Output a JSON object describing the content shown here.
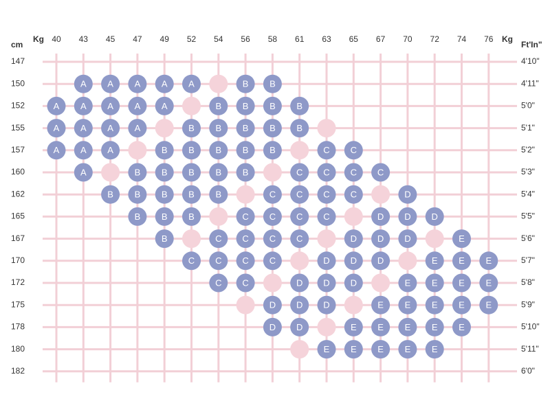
{
  "header": {
    "row_label": "cm",
    "column_label_left": "Kg",
    "column_label_right": "Kg",
    "row_label_right": "Ft'In\""
  },
  "columns": [
    40,
    43,
    45,
    47,
    49,
    52,
    54,
    56,
    58,
    61,
    63,
    65,
    67,
    70,
    72,
    74,
    76
  ],
  "rows": [
    {
      "cm": 147,
      "ft": "4'10\"",
      "cells": []
    },
    {
      "cm": 150,
      "ft": "4'11\"",
      "cells": [
        {
          "col": 1,
          "size": "A"
        },
        {
          "col": 2,
          "size": "A"
        },
        {
          "col": 3,
          "size": "A"
        },
        {
          "col": 4,
          "size": "A"
        },
        {
          "col": 5,
          "size": "A"
        },
        {
          "col": 6
        },
        {
          "col": 7,
          "size": "B"
        },
        {
          "col": 8,
          "size": "B"
        }
      ]
    },
    {
      "cm": 152,
      "ft": "5'0\"",
      "cells": [
        {
          "col": 0,
          "size": "A"
        },
        {
          "col": 1,
          "size": "A"
        },
        {
          "col": 2,
          "size": "A"
        },
        {
          "col": 3,
          "size": "A"
        },
        {
          "col": 4,
          "size": "A"
        },
        {
          "col": 5
        },
        {
          "col": 6,
          "size": "B"
        },
        {
          "col": 7,
          "size": "B"
        },
        {
          "col": 8,
          "size": "B"
        },
        {
          "col": 9,
          "size": "B"
        }
      ]
    },
    {
      "cm": 155,
      "ft": "5'1\"",
      "cells": [
        {
          "col": 0,
          "size": "A"
        },
        {
          "col": 1,
          "size": "A"
        },
        {
          "col": 2,
          "size": "A"
        },
        {
          "col": 3,
          "size": "A"
        },
        {
          "col": 4
        },
        {
          "col": 5,
          "size": "B"
        },
        {
          "col": 6,
          "size": "B"
        },
        {
          "col": 7,
          "size": "B"
        },
        {
          "col": 8,
          "size": "B"
        },
        {
          "col": 9,
          "size": "B"
        },
        {
          "col": 10
        }
      ]
    },
    {
      "cm": 157,
      "ft": "5'2\"",
      "cells": [
        {
          "col": 0,
          "size": "A"
        },
        {
          "col": 1,
          "size": "A"
        },
        {
          "col": 2,
          "size": "A"
        },
        {
          "col": 3
        },
        {
          "col": 4,
          "size": "B"
        },
        {
          "col": 5,
          "size": "B"
        },
        {
          "col": 6,
          "size": "B"
        },
        {
          "col": 7,
          "size": "B"
        },
        {
          "col": 8,
          "size": "B"
        },
        {
          "col": 9
        },
        {
          "col": 10,
          "size": "C"
        },
        {
          "col": 11,
          "size": "C"
        }
      ]
    },
    {
      "cm": 160,
      "ft": "5'3\"",
      "cells": [
        {
          "col": 1,
          "size": "A"
        },
        {
          "col": 2
        },
        {
          "col": 3,
          "size": "B"
        },
        {
          "col": 4,
          "size": "B"
        },
        {
          "col": 5,
          "size": "B"
        },
        {
          "col": 6,
          "size": "B"
        },
        {
          "col": 7,
          "size": "B"
        },
        {
          "col": 8
        },
        {
          "col": 9,
          "size": "C"
        },
        {
          "col": 10,
          "size": "C"
        },
        {
          "col": 11,
          "size": "C"
        },
        {
          "col": 12,
          "size": "C"
        }
      ]
    },
    {
      "cm": 162,
      "ft": "5'4\"",
      "cells": [
        {
          "col": 2,
          "size": "B"
        },
        {
          "col": 3,
          "size": "B"
        },
        {
          "col": 4,
          "size": "B"
        },
        {
          "col": 5,
          "size": "B"
        },
        {
          "col": 6,
          "size": "B"
        },
        {
          "col": 7
        },
        {
          "col": 8,
          "size": "C"
        },
        {
          "col": 9,
          "size": "C"
        },
        {
          "col": 10,
          "size": "C"
        },
        {
          "col": 11,
          "size": "C"
        },
        {
          "col": 12
        },
        {
          "col": 13,
          "size": "D"
        }
      ]
    },
    {
      "cm": 165,
      "ft": "5'5\"",
      "cells": [
        {
          "col": 3,
          "size": "B"
        },
        {
          "col": 4,
          "size": "B"
        },
        {
          "col": 5,
          "size": "B"
        },
        {
          "col": 6
        },
        {
          "col": 7,
          "size": "C"
        },
        {
          "col": 8,
          "size": "C"
        },
        {
          "col": 9,
          "size": "C"
        },
        {
          "col": 10,
          "size": "C"
        },
        {
          "col": 11
        },
        {
          "col": 12,
          "size": "D"
        },
        {
          "col": 13,
          "size": "D"
        },
        {
          "col": 14,
          "size": "D"
        }
      ]
    },
    {
      "cm": 167,
      "ft": "5'6\"",
      "cells": [
        {
          "col": 4,
          "size": "B"
        },
        {
          "col": 5
        },
        {
          "col": 6,
          "size": "C"
        },
        {
          "col": 7,
          "size": "C"
        },
        {
          "col": 8,
          "size": "C"
        },
        {
          "col": 9,
          "size": "C"
        },
        {
          "col": 10
        },
        {
          "col": 11,
          "size": "D"
        },
        {
          "col": 12,
          "size": "D"
        },
        {
          "col": 13,
          "size": "D"
        },
        {
          "col": 14
        },
        {
          "col": 15,
          "size": "E"
        }
      ]
    },
    {
      "cm": 170,
      "ft": "5'7\"",
      "cells": [
        {
          "col": 5,
          "size": "C"
        },
        {
          "col": 6,
          "size": "C"
        },
        {
          "col": 7,
          "size": "C"
        },
        {
          "col": 8,
          "size": "C"
        },
        {
          "col": 9
        },
        {
          "col": 10,
          "size": "D"
        },
        {
          "col": 11,
          "size": "D"
        },
        {
          "col": 12,
          "size": "D"
        },
        {
          "col": 13
        },
        {
          "col": 14,
          "size": "E"
        },
        {
          "col": 15,
          "size": "E"
        },
        {
          "col": 16,
          "size": "E"
        }
      ]
    },
    {
      "cm": 172,
      "ft": "5'8\"",
      "cells": [
        {
          "col": 6,
          "size": "C"
        },
        {
          "col": 7,
          "size": "C"
        },
        {
          "col": 8
        },
        {
          "col": 9,
          "size": "D"
        },
        {
          "col": 10,
          "size": "D"
        },
        {
          "col": 11,
          "size": "D"
        },
        {
          "col": 12
        },
        {
          "col": 13,
          "size": "E"
        },
        {
          "col": 14,
          "size": "E"
        },
        {
          "col": 15,
          "size": "E"
        },
        {
          "col": 16,
          "size": "E"
        }
      ]
    },
    {
      "cm": 175,
      "ft": "5'9\"",
      "cells": [
        {
          "col": 7
        },
        {
          "col": 8,
          "size": "D"
        },
        {
          "col": 9,
          "size": "D"
        },
        {
          "col": 10,
          "size": "D"
        },
        {
          "col": 11
        },
        {
          "col": 12,
          "size": "E"
        },
        {
          "col": 13,
          "size": "E"
        },
        {
          "col": 14,
          "size": "E"
        },
        {
          "col": 15,
          "size": "E"
        },
        {
          "col": 16,
          "size": "E"
        }
      ]
    },
    {
      "cm": 178,
      "ft": "5'10\"",
      "cells": [
        {
          "col": 8,
          "size": "D"
        },
        {
          "col": 9,
          "size": "D"
        },
        {
          "col": 10
        },
        {
          "col": 11,
          "size": "E"
        },
        {
          "col": 12,
          "size": "E"
        },
        {
          "col": 13,
          "size": "E"
        },
        {
          "col": 14,
          "size": "E"
        },
        {
          "col": 15,
          "size": "E"
        }
      ]
    },
    {
      "cm": 180,
      "ft": "5'11\"",
      "cells": [
        {
          "col": 9
        },
        {
          "col": 10,
          "size": "E"
        },
        {
          "col": 11,
          "size": "E"
        },
        {
          "col": 12,
          "size": "E"
        },
        {
          "col": 13,
          "size": "E"
        },
        {
          "col": 14,
          "size": "E"
        }
      ]
    },
    {
      "cm": 182,
      "ft": "6'0\"",
      "cells": []
    }
  ]
}
